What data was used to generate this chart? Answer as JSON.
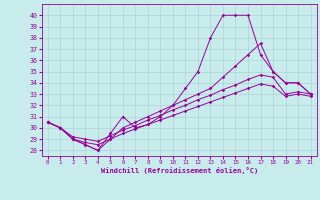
{
  "xlabel": "Windchill (Refroidissement éolien,°C)",
  "background_color": "#c8ecec",
  "grid_color": "#aad4d4",
  "line_color": "#990099",
  "xlim": [
    -0.5,
    21.5
  ],
  "ylim": [
    27.5,
    41.0
  ],
  "xticks": [
    0,
    1,
    2,
    3,
    4,
    5,
    6,
    7,
    8,
    9,
    10,
    11,
    12,
    13,
    14,
    15,
    16,
    17,
    18,
    19,
    20,
    21
  ],
  "yticks": [
    28,
    29,
    30,
    31,
    32,
    33,
    34,
    35,
    36,
    37,
    38,
    39,
    40
  ],
  "series1_x": [
    0,
    1,
    2,
    3,
    4,
    5,
    6,
    7,
    8,
    9,
    10,
    11,
    12,
    13,
    14,
    15,
    16,
    17,
    18,
    19,
    20,
    21
  ],
  "series1_y": [
    30.5,
    30.0,
    29.0,
    28.5,
    28.0,
    29.5,
    31.0,
    30.0,
    30.3,
    31.0,
    32.0,
    33.5,
    35.0,
    38.0,
    40.0,
    40.0,
    40.0,
    36.5,
    35.0,
    34.0,
    34.0,
    33.0
  ],
  "series2_x": [
    0,
    1,
    2,
    3,
    4,
    5,
    6,
    7,
    8,
    9,
    10,
    11,
    12,
    13,
    14,
    15,
    16,
    17,
    18,
    19,
    20,
    21
  ],
  "series2_y": [
    30.5,
    30.0,
    29.0,
    28.5,
    28.0,
    29.0,
    30.0,
    30.5,
    31.0,
    31.5,
    32.0,
    32.5,
    33.0,
    33.5,
    34.5,
    35.5,
    36.5,
    37.5,
    35.0,
    34.0,
    34.0,
    33.0
  ],
  "series3_x": [
    0,
    1,
    2,
    3,
    4,
    5,
    6,
    7,
    8,
    9,
    10,
    11,
    12,
    13,
    14,
    15,
    16,
    17,
    18,
    19,
    20,
    21
  ],
  "series3_y": [
    30.5,
    30.0,
    29.2,
    29.0,
    28.8,
    29.3,
    29.8,
    30.2,
    30.7,
    31.1,
    31.6,
    32.0,
    32.5,
    32.9,
    33.4,
    33.8,
    34.3,
    34.7,
    34.5,
    33.0,
    33.2,
    33.0
  ],
  "series4_x": [
    0,
    1,
    2,
    3,
    4,
    5,
    6,
    7,
    8,
    9,
    10,
    11,
    12,
    13,
    14,
    15,
    16,
    17,
    18,
    19,
    20,
    21
  ],
  "series4_y": [
    30.5,
    30.0,
    29.0,
    28.7,
    28.5,
    29.0,
    29.5,
    29.9,
    30.3,
    30.7,
    31.1,
    31.5,
    31.9,
    32.3,
    32.7,
    33.1,
    33.5,
    33.9,
    33.7,
    32.8,
    33.0,
    32.8
  ]
}
